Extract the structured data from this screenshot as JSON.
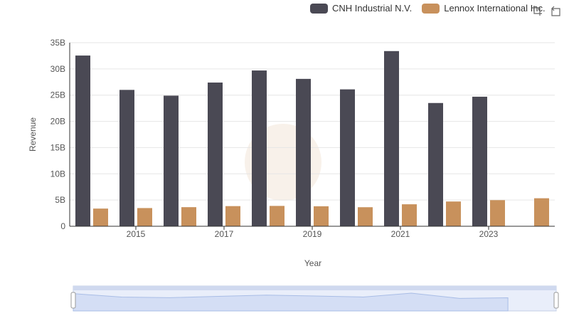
{
  "legend": {
    "items": [
      {
        "label": "CNH Industrial N.V.",
        "color": "#4a4954"
      },
      {
        "label": "Lennox International Inc.",
        "color": "#c8915c"
      }
    ]
  },
  "toolbox": {
    "icons": [
      "zoom-icon",
      "restore-icon"
    ]
  },
  "chart_data": {
    "type": "bar",
    "xlabel": "Year",
    "ylabel": "Revenue",
    "categories": [
      "2014",
      "2015",
      "2016",
      "2017",
      "2018",
      "2019",
      "2020",
      "2021",
      "2022",
      "2023",
      "2024"
    ],
    "x_tick_labels": [
      "2015",
      "2017",
      "2019",
      "2021",
      "2023"
    ],
    "y_tick_labels": [
      "0",
      "5B",
      "10B",
      "15B",
      "20B",
      "25B",
      "30B",
      "35B"
    ],
    "ylim": [
      0,
      35000000000
    ],
    "grid": true,
    "legend_position": "top-right",
    "series": [
      {
        "name": "CNH Industrial N.V.",
        "color": "#4a4954",
        "values": [
          32550000000,
          26000000000,
          24900000000,
          27400000000,
          29700000000,
          28100000000,
          26100000000,
          33400000000,
          23500000000,
          24700000000,
          null
        ]
      },
      {
        "name": "Lennox International Inc.",
        "color": "#c8915c",
        "values": [
          3370000000,
          3470000000,
          3640000000,
          3840000000,
          3880000000,
          3810000000,
          3630000000,
          4190000000,
          4720000000,
          4980000000,
          5340000000
        ]
      }
    ],
    "data_zoom": {
      "start_percent": 0,
      "end_percent": 100
    }
  }
}
